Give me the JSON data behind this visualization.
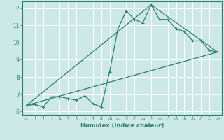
{
  "title": "",
  "xlabel": "Humidex (Indice chaleur)",
  "ylabel": "",
  "xlim": [
    -0.5,
    23.5
  ],
  "ylim": [
    5.8,
    12.4
  ],
  "yticks": [
    6,
    7,
    8,
    9,
    10,
    11,
    12
  ],
  "xticks": [
    0,
    1,
    2,
    3,
    4,
    5,
    6,
    7,
    8,
    9,
    10,
    11,
    12,
    13,
    14,
    15,
    16,
    17,
    18,
    19,
    20,
    21,
    22,
    23
  ],
  "bg_color": "#cce8e8",
  "grid_color": "#ffffff",
  "line_color": "#2e7d6e",
  "line1_x": [
    0,
    1,
    2,
    3,
    4,
    5,
    6,
    7,
    8,
    9,
    10,
    11,
    12,
    13,
    14,
    15,
    16,
    17,
    18,
    19,
    20,
    21,
    22,
    23
  ],
  "line1_y": [
    6.35,
    6.4,
    6.25,
    6.85,
    6.85,
    6.75,
    6.65,
    6.9,
    6.45,
    6.25,
    8.3,
    10.8,
    11.85,
    11.35,
    11.15,
    12.2,
    11.35,
    11.35,
    10.8,
    10.65,
    10.1,
    10.1,
    9.55,
    9.45
  ],
  "line2_x": [
    0,
    23
  ],
  "line2_y": [
    6.35,
    9.45
  ],
  "line3_x": [
    0,
    15,
    23
  ],
  "line3_y": [
    6.35,
    12.2,
    9.45
  ],
  "xlabel_fontsize": 6.0,
  "xlabel_fontweight": "bold",
  "xtick_fontsize": 4.2,
  "ytick_fontsize": 5.5,
  "linewidth": 0.9,
  "marker_size": 3.5
}
